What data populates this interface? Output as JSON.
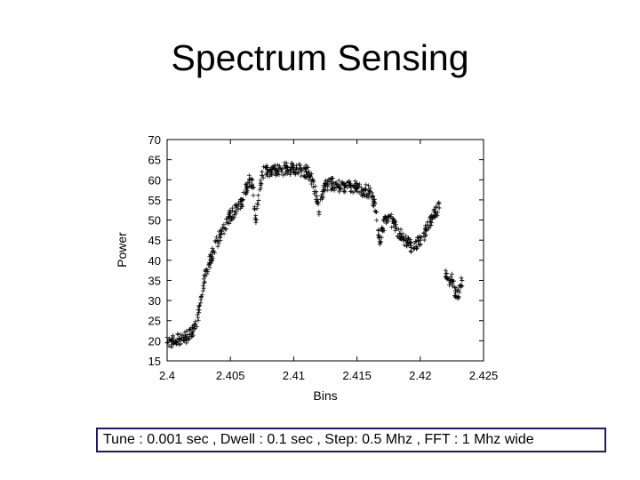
{
  "slide": {
    "title": "Spectrum Sensing",
    "caption": "Tune : 0.001 sec , Dwell : 0.1 sec , Step: 0.5 Mhz , FFT : 1 Mhz wide"
  },
  "chart_data": {
    "type": "scatter",
    "marker": "+",
    "title": "",
    "xlabel": "Bins",
    "ylabel": "Power",
    "xlim": [
      2.4,
      2.425
    ],
    "ylim": [
      15,
      70
    ],
    "xticks": [
      "2.4",
      "2.405",
      "2.41",
      "2.415",
      "2.42",
      "2.425"
    ],
    "yticks": [
      "15",
      "20",
      "25",
      "30",
      "35",
      "40",
      "45",
      "50",
      "55",
      "60",
      "65",
      "70"
    ],
    "grid": false,
    "legend": "none",
    "colors": {
      "points": "#000000",
      "axes": "#000000",
      "caption_border": "#1a1a66"
    },
    "series": [
      {
        "x": [
          2.4,
          2.4005,
          2.401,
          2.4015,
          2.4018,
          2.402,
          2.4022,
          2.4025,
          2.4027,
          2.403,
          2.4035,
          2.404,
          2.4045,
          2.405,
          2.4055,
          2.406,
          2.4063,
          2.4065,
          2.4068,
          2.407,
          2.4075,
          2.408,
          2.4085,
          2.409,
          2.4095,
          2.41,
          2.4105,
          2.411,
          2.4113,
          2.4115,
          2.4118,
          2.412,
          2.4125,
          2.413,
          2.4135,
          2.414,
          2.4145,
          2.415,
          2.4155,
          2.416,
          2.4163,
          2.4165,
          2.4168,
          2.417,
          2.4175,
          2.418,
          2.4185,
          2.419,
          2.4195,
          2.42,
          2.4205,
          2.421,
          2.4212,
          2.4215,
          2.422,
          2.4225,
          2.4228,
          2.423,
          2.4233
        ],
        "y": [
          19.5,
          20,
          20.5,
          21,
          21.5,
          22,
          23,
          27,
          31,
          36,
          41,
          45,
          48,
          51,
          53,
          55,
          58.5,
          60,
          58,
          50,
          62,
          62,
          62.5,
          62.5,
          63,
          62.5,
          62.5,
          62,
          61,
          60,
          56,
          52,
          59,
          59,
          58.5,
          58.5,
          58.5,
          58,
          57.5,
          57,
          55,
          52,
          44,
          48,
          51,
          48.5,
          46,
          44.5,
          43,
          45,
          47.5,
          51,
          52,
          53,
          36,
          35,
          32,
          31,
          35
        ]
      }
    ]
  }
}
